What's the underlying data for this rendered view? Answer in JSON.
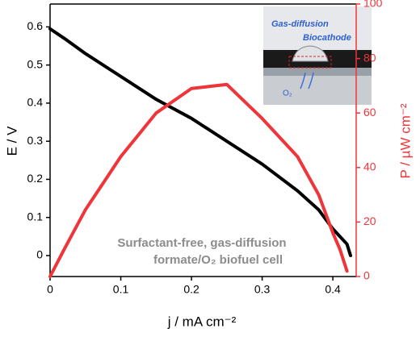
{
  "chart_data": {
    "type": "line",
    "x_label": "j / mA cm⁻²",
    "y_label": "E / V",
    "y2_label": "P / µW cm⁻²",
    "x": [
      0,
      0.02,
      0.05,
      0.1,
      0.15,
      0.2,
      0.25,
      0.3,
      0.35,
      0.38,
      0.4,
      0.41,
      0.42,
      0.425
    ],
    "series": [
      {
        "name": "E",
        "color": "#000000",
        "values": [
          0.595,
          0.57,
          0.53,
          0.47,
          0.41,
          0.36,
          0.3,
          0.24,
          0.17,
          0.12,
          0.07,
          0.05,
          0.03,
          0.0
        ]
      },
      {
        "name": "P",
        "color": "#f0353a",
        "axis": "y2",
        "values": [
          0,
          10,
          24.5,
          44,
          60,
          69,
          70.5,
          58,
          44,
          30,
          16,
          10,
          2,
          null
        ]
      }
    ],
    "xlim": [
      0,
      0.433
    ],
    "xticks": [
      0,
      0.1,
      0.2,
      0.3,
      0.4
    ],
    "ylim": [
      -0.055,
      0.66
    ],
    "yticks": [
      0,
      0.1,
      0.2,
      0.3,
      0.4,
      0.5,
      0.6
    ],
    "y2lim": [
      0,
      100
    ],
    "y2ticks": [
      0,
      20,
      40,
      60,
      80,
      100
    ],
    "annotations": [
      "Surfactant-free, gas-diffusion",
      "formate/O₂ biofuel cell"
    ],
    "inset": {
      "title": "Gas-diffusion",
      "subtitle": "Biocathode",
      "gas": "O₂"
    }
  }
}
